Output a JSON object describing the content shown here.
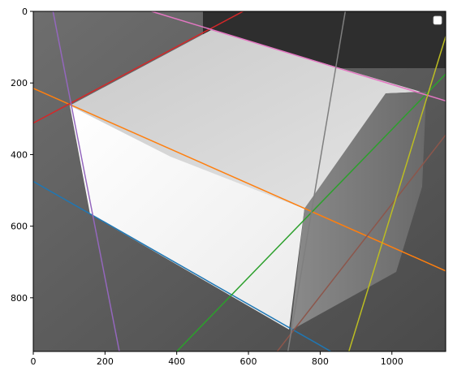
{
  "chart_data": {
    "type": "line",
    "title": "",
    "xlabel": "",
    "ylabel": "",
    "xlim": [
      0,
      1150
    ],
    "ylim": [
      950,
      0
    ],
    "x_ticks": [
      0,
      200,
      400,
      600,
      800,
      1000
    ],
    "y_ticks": [
      0,
      200,
      400,
      600,
      800
    ],
    "x_tick_labels": [
      "0",
      "200",
      "400",
      "600",
      "800",
      "1000"
    ],
    "y_tick_labels": [
      "0",
      "200",
      "400",
      "600",
      "800"
    ],
    "grid": false,
    "legend": "top-right",
    "background": "grayscale photograph of a cardboard box on a wooden floor",
    "series": [
      {
        "color": "#1f77b4",
        "x": [
          0,
          830
        ],
        "y": [
          475,
          950
        ]
      },
      {
        "color": "#ff7f0e",
        "x": [
          0,
          1150
        ],
        "y": [
          215,
          725
        ]
      },
      {
        "color": "#2ca02c",
        "x": [
          400,
          1150
        ],
        "y": [
          950,
          175
        ]
      },
      {
        "color": "#d62728",
        "x": [
          0,
          585
        ],
        "y": [
          312,
          0
        ]
      },
      {
        "color": "#9467bd",
        "x": [
          55,
          240
        ],
        "y": [
          0,
          950
        ]
      },
      {
        "color": "#8c564b",
        "x": [
          680,
          1150
        ],
        "y": [
          950,
          345
        ]
      },
      {
        "color": "#e377c2",
        "x": [
          330,
          1150
        ],
        "y": [
          0,
          250
        ]
      },
      {
        "color": "#7f7f7f",
        "x": [
          710,
          870
        ],
        "y": [
          950,
          0
        ]
      },
      {
        "color": "#bcbd22",
        "x": [
          880,
          1150
        ],
        "y": [
          950,
          70
        ]
      }
    ]
  }
}
